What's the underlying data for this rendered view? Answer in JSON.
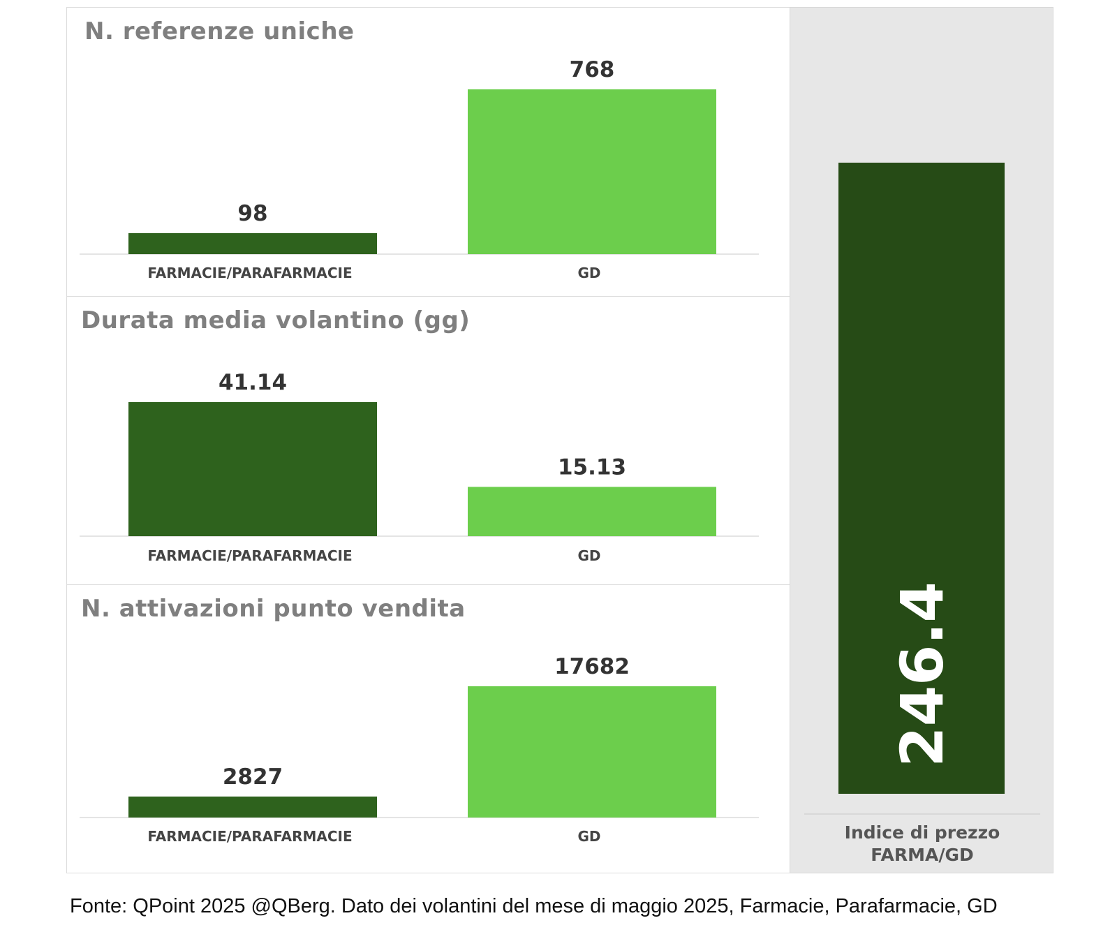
{
  "chart_data": [
    {
      "type": "bar",
      "title": "N. referenze uniche",
      "categories": [
        "FARMACIE/PARAFARMACIE",
        "GD"
      ],
      "values": [
        98,
        768
      ],
      "value_labels": [
        "98",
        "768"
      ],
      "colors": [
        "#2e621d",
        "#6cce4c"
      ]
    },
    {
      "type": "bar",
      "title": "Durata media volantino (gg)",
      "categories": [
        "FARMACIE/PARAFARMACIE",
        "GD"
      ],
      "values": [
        41.14,
        15.13
      ],
      "value_labels": [
        "41.14",
        "15.13"
      ],
      "colors": [
        "#2e621d",
        "#6cce4c"
      ]
    },
    {
      "type": "bar",
      "title": "N. attivazioni punto vendita",
      "categories": [
        "FARMACIE/PARAFARMACIE",
        "GD"
      ],
      "values": [
        2827,
        17682
      ],
      "value_labels": [
        "2827",
        "17682"
      ],
      "colors": [
        "#2e621d",
        "#6cce4c"
      ]
    },
    {
      "type": "bar",
      "categories": [
        "Indice di prezzo FARMA/GD"
      ],
      "category_lines": [
        "Indice di prezzo",
        "FARMA/GD"
      ],
      "values": [
        246.4
      ],
      "value_labels": [
        "246.4"
      ],
      "value_label_orientation": "vertical-inside-bar",
      "colors": [
        "#264b16"
      ]
    }
  ],
  "source": "Fonte: QPoint 2025 @QBerg. Dato dei volantini del mese di maggio 2025, Farmacie, Parafarmacie, GD",
  "colors": {
    "dark_green": "#2e621d",
    "light_green": "#6cce4c",
    "side_bar": "#264b16",
    "side_background": "#e7e7e7",
    "title_gray": "#7f7f7f"
  }
}
